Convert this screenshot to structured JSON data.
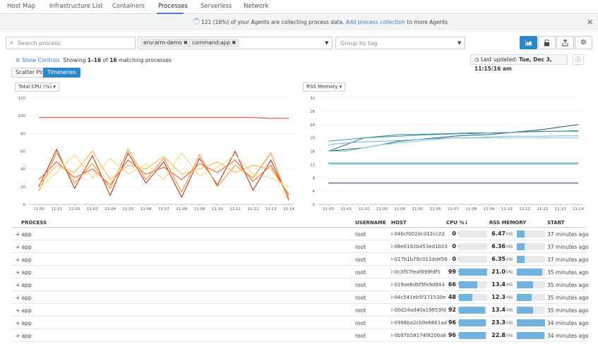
{
  "nav": {
    "tabs": [
      {
        "label": "Host Map"
      },
      {
        "label": "Infrastructure List"
      },
      {
        "label": "Containers"
      },
      {
        "label": "Processes"
      },
      {
        "label": "Serverless"
      },
      {
        "label": "Network"
      }
    ],
    "active_tab": "Processes"
  },
  "banner": {
    "text": "121 (16%) of your Agents are collecting process data.",
    "link": "Add process collection",
    "suffix": "to more Agents",
    "close": "✕"
  },
  "filters": {
    "search_placeholder": "Search process",
    "tags": [
      "env:arm-demo",
      "command:app"
    ],
    "group_by_placeholder": "Group by tag"
  },
  "toolbar_icons": [
    "chart-icon",
    "lock-icon",
    "share-icon",
    "gear-icon"
  ],
  "controls": {
    "show_controls": "Show Controls",
    "showing_prefix": "Showing",
    "showing_range": "1–16",
    "showing_of": "of",
    "showing_total": "16",
    "showing_suffix": "matching processes",
    "last_updated_label": "Last updated:",
    "last_updated_value": "Tue, Dec 3, 11:15:16 am",
    "views": [
      "Scatter Plot",
      "Timeseries"
    ],
    "active_view": "Timeseries"
  },
  "charts": {
    "left_metric": "Total CPU (%)",
    "right_metric": "RSS Memory"
  },
  "chart_data": [
    {
      "type": "line",
      "metric": "Total CPU (%)",
      "ylim": [
        0,
        120
      ],
      "yticks": [
        0,
        20,
        40,
        60,
        80,
        100,
        120
      ],
      "x": [
        "11:00",
        "11:01",
        "11:02",
        "11:03",
        "11:04",
        "11:05",
        "11:06",
        "11:07",
        "11:08",
        "11:09",
        "11:10",
        "11:11",
        "11:12",
        "11:13",
        "11:14"
      ],
      "series": [
        {
          "color": "#d9361c",
          "values": [
            98,
            98,
            98,
            98,
            98,
            98,
            98,
            98,
            98,
            98,
            98,
            98,
            98,
            97,
            97
          ]
        },
        {
          "color": "#b3200e",
          "values": [
            20,
            62,
            18,
            55,
            10,
            58,
            24,
            48,
            8,
            52,
            22,
            60,
            16,
            50,
            6
          ]
        },
        {
          "color": "#e8531f",
          "values": [
            28,
            48,
            30,
            40,
            22,
            50,
            34,
            42,
            28,
            46,
            36,
            50,
            26,
            44,
            10
          ]
        },
        {
          "color": "#f08a24",
          "values": [
            15,
            58,
            24,
            46,
            18,
            62,
            28,
            52,
            14,
            56,
            20,
            44,
            30,
            58,
            4
          ]
        },
        {
          "color": "#f5b240",
          "values": [
            22,
            44,
            36,
            60,
            28,
            44,
            40,
            54,
            34,
            40,
            48,
            36,
            44,
            40,
            12
          ]
        },
        {
          "color": "#f9d27a",
          "values": [
            18,
            36,
            56,
            30,
            52,
            34,
            46,
            28,
            58,
            32,
            42,
            56,
            34,
            30,
            20
          ]
        }
      ]
    },
    {
      "type": "line",
      "metric": "RSS Memory",
      "ylim": [
        0,
        32
      ],
      "yticks": [
        0,
        4,
        8,
        12,
        16,
        20,
        24,
        28,
        32
      ],
      "x": [
        "11:00",
        "11:01",
        "11:02",
        "11:03",
        "11:04",
        "11:05",
        "11:06",
        "11:07",
        "11:08",
        "11:09",
        "11:10",
        "11:11",
        "11:12",
        "11:13",
        "11:14"
      ],
      "series": [
        {
          "color": "#1d4f7a",
          "values": [
            16,
            16.5,
            17,
            18,
            19,
            19.5,
            20,
            20.5,
            20.8,
            21,
            21.5,
            22,
            22.5,
            23.3,
            24
          ]
        },
        {
          "color": "#2b7a9a",
          "values": [
            16,
            18,
            20,
            20.5,
            21,
            21,
            21.2,
            21.3,
            21.5,
            21.5,
            21.6,
            21.8,
            22,
            22,
            22.2
          ]
        },
        {
          "color": "#3f9f9a",
          "values": [
            19,
            19.5,
            20,
            20.3,
            20.5,
            20.8,
            21,
            21.2,
            21.3,
            21.5,
            21.6,
            21.8,
            21.9,
            22,
            22
          ]
        },
        {
          "color": "#7fd0c9",
          "values": [
            16,
            16,
            17,
            18,
            18.5,
            19,
            19.5,
            20,
            20,
            20,
            20,
            20,
            20,
            20,
            20
          ]
        },
        {
          "color": "#6fb3de",
          "values": [
            18,
            18.5,
            18.8,
            19,
            19.2,
            19.5,
            19.8,
            20,
            20,
            20.3,
            20.5,
            20.5,
            20.5,
            20.6,
            20.6
          ]
        },
        {
          "color": "#2b7a9a",
          "values": [
            12.4,
            12.4,
            12.4,
            12.4,
            12.4,
            12.4,
            12.4,
            12.4,
            12.4,
            12.4,
            12.4,
            12.4,
            12.4,
            12.4,
            12.4
          ]
        },
        {
          "color": "#7fd0c9",
          "values": [
            12,
            12,
            12,
            12,
            12,
            12,
            12,
            12,
            12,
            12,
            12,
            12,
            12,
            12,
            12
          ]
        },
        {
          "color": "#1d3f66",
          "values": [
            6.4,
            6.4,
            6.4,
            6.4,
            6.4,
            6.4,
            6.4,
            6.4,
            6.4,
            6.4,
            6.4,
            6.4,
            6.4,
            6.4,
            6.4
          ]
        }
      ]
    }
  ],
  "table": {
    "headers": {
      "process": "PROCESS",
      "username": "USERNAME",
      "host": "HOST",
      "cpu": "CPU %↓",
      "rss": "RSS MEMORY",
      "start": "START"
    },
    "cpu_unit": "%",
    "rss_unit": "MB",
    "rows": [
      {
        "process": "+ app",
        "username": "root",
        "host": "i-04bcf002dcd12cc22",
        "cpu": "0",
        "cpu_frac": 0,
        "rss": "6.47",
        "rss_frac": 0.28,
        "start": "37 minutes ago"
      },
      {
        "process": "+ app",
        "username": "root",
        "host": "i-06e0192b453ed1b03",
        "cpu": "0",
        "cpu_frac": 0,
        "rss": "6.36",
        "rss_frac": 0.27,
        "start": "37 minutes ago"
      },
      {
        "process": "+ app",
        "username": "root",
        "host": "i-017b1b78c011dd456",
        "cpu": "0",
        "cpu_frac": 0,
        "rss": "6.35",
        "rss_frac": 0.27,
        "start": "37 minutes ago"
      },
      {
        "process": "+ app",
        "username": "root",
        "host": "i-0c3f57feaf899fdf5",
        "cpu": "99",
        "cpu_frac": 0.99,
        "rss": "21.0",
        "rss_frac": 0.9,
        "start": "35 minutes ago"
      },
      {
        "process": "+ app",
        "username": "root",
        "host": "i-019ae6dbf5fe9d844",
        "cpu": "66",
        "cpu_frac": 0.66,
        "rss": "13.4",
        "rss_frac": 0.57,
        "start": "35 minutes ago"
      },
      {
        "process": "+ app",
        "username": "root",
        "host": "i-04c541eb5f171530e",
        "cpu": "48",
        "cpu_frac": 0.48,
        "rss": "12.3",
        "rss_frac": 0.53,
        "start": "35 minutes ago"
      },
      {
        "process": "+ app",
        "username": "root",
        "host": "i-00d24ad40a19653fd",
        "cpu": "92",
        "cpu_frac": 0.92,
        "rss": "13.4",
        "rss_frac": 0.57,
        "start": "35 minutes ago"
      },
      {
        "process": "+ app",
        "username": "root",
        "host": "i-0996ba2cb9e6661ad",
        "cpu": "96",
        "cpu_frac": 0.96,
        "rss": "23.3",
        "rss_frac": 1.0,
        "start": "34 minutes ago"
      },
      {
        "process": "+ app",
        "username": "root",
        "host": "i-0b97b58174f8206a8",
        "cpu": "96",
        "cpu_frac": 0.96,
        "rss": "22.8",
        "rss_frac": 0.98,
        "start": "34 minutes ago"
      }
    ]
  },
  "colors": {
    "accent": "#2c87c8",
    "link": "#3a7ed0",
    "bar_fill": "#6fb3de",
    "bar_track": "#e7e9ec"
  }
}
